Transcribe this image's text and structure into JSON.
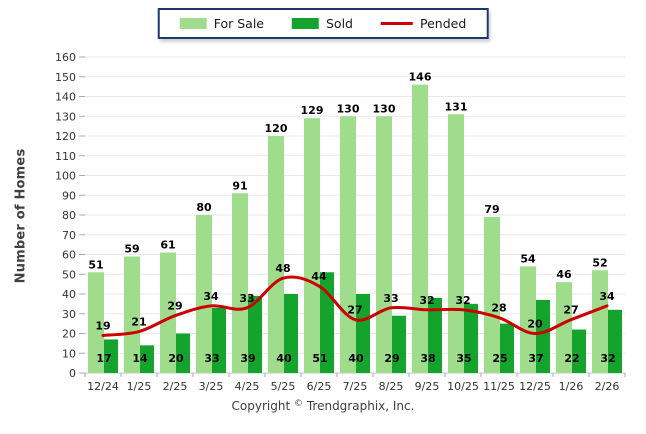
{
  "chart_data": {
    "type": "bar",
    "categories": [
      "12/24",
      "1/25",
      "2/25",
      "3/25",
      "4/25",
      "5/25",
      "6/25",
      "7/25",
      "8/25",
      "9/25",
      "10/25",
      "11/25",
      "12/25",
      "1/26",
      "2/26"
    ],
    "series": [
      {
        "name": "For Sale",
        "type": "bar",
        "color": "#9fdd8d",
        "values": [
          51,
          59,
          61,
          80,
          91,
          120,
          129,
          130,
          130,
          146,
          131,
          79,
          54,
          46,
          52
        ]
      },
      {
        "name": "Sold",
        "type": "bar",
        "color": "#14a32d",
        "values": [
          17,
          14,
          20,
          33,
          39,
          40,
          51,
          40,
          29,
          38,
          35,
          25,
          37,
          22,
          32
        ]
      },
      {
        "name": "Pended",
        "type": "line",
        "color": "#cc0000",
        "values": [
          19,
          21,
          29,
          34,
          33,
          48,
          44,
          27,
          33,
          32,
          32,
          28,
          20,
          27,
          34
        ]
      }
    ],
    "title": "",
    "xlabel": "",
    "ylabel": "Number of Homes",
    "ylim": [
      0,
      160
    ],
    "ytick_step": 10,
    "grid": true,
    "legend_position": "top-center",
    "value_labels": true
  },
  "colors": {
    "grid": "#e8e8e8",
    "axis_line": "#c8c8c8",
    "tick": "#aaaaaa",
    "axis_text": "#333333",
    "value_text": "#000000",
    "legend_border": "#1b3a6b"
  },
  "footer": {
    "copyright_prefix": "Copyright",
    "copyright_symbol": "©",
    "copyright_owner": "Trendgraphix, Inc."
  }
}
